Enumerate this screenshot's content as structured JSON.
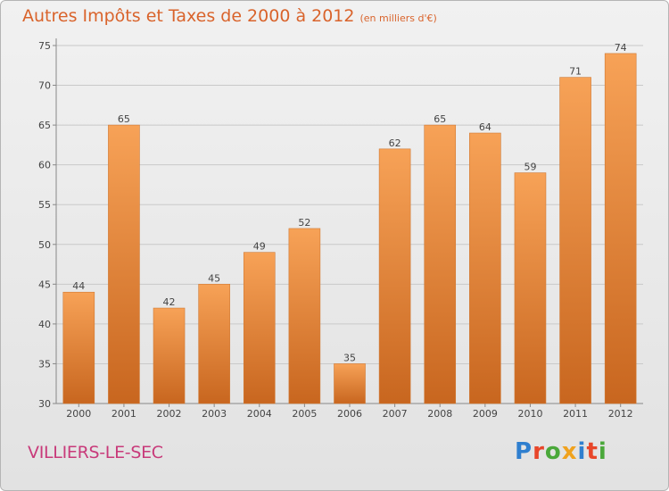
{
  "title": "Autres Impôts et Taxes de 2000 à 2012",
  "subtitle": "(en milliers d'€)",
  "place_name": "VILLIERS-LE-SEC",
  "logo": {
    "text": "Proxiti",
    "letters": [
      {
        "char": "P",
        "color": "#2f7fcf"
      },
      {
        "char": "r",
        "color": "#e8462a"
      },
      {
        "char": "o",
        "color": "#4aa83a"
      },
      {
        "char": "x",
        "color": "#f0a21e"
      },
      {
        "char": "i",
        "color": "#2f7fcf"
      },
      {
        "char": "t",
        "color": "#e8462a"
      },
      {
        "char": "i",
        "color": "#4aa83a"
      }
    ]
  },
  "colors": {
    "title": "#d9632b",
    "place": "#c83a7a",
    "bar_top": "#f7a257",
    "bar_bottom": "#c8661f",
    "grid": "#c9c9c9"
  },
  "chart_data": {
    "type": "bar",
    "title": "Autres Impôts et Taxes de 2000 à 2012",
    "subtitle": "(en milliers d'€)",
    "categories": [
      "2000",
      "2001",
      "2002",
      "2003",
      "2004",
      "2005",
      "2006",
      "2007",
      "2008",
      "2009",
      "2010",
      "2011",
      "2012"
    ],
    "values": [
      44,
      65,
      42,
      45,
      49,
      52,
      35,
      62,
      65,
      64,
      59,
      71,
      74
    ],
    "ylim": [
      30,
      75
    ],
    "yticks": [
      30,
      35,
      40,
      45,
      50,
      55,
      60,
      65,
      70,
      75
    ],
    "grid": true,
    "data_labels": true
  }
}
